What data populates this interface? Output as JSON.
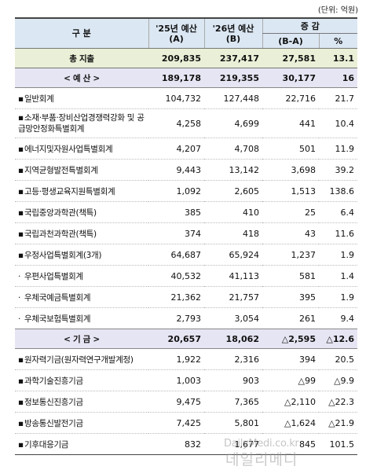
{
  "unit_note": "(단위: 억원)",
  "headers": {
    "category": "구    분",
    "col_2025": "'25년 예산",
    "col_2025_sub": "(A)",
    "col_2026": "'26년 예산",
    "col_2026_sub": "(B)",
    "change": "증 감",
    "change_abs": "(B-A)",
    "change_pct": "%"
  },
  "total": {
    "label": "총 지출",
    "a": "209,835",
    "b": "237,417",
    "diff": "27,581",
    "pct": "13.1"
  },
  "budget_section": {
    "label": "< 예 산 >",
    "a": "189,178",
    "b": "219,355",
    "diff": "30,177",
    "pct": "16"
  },
  "budget_items": [
    {
      "bullet": "▪",
      "label": "일반회계",
      "a": "104,732",
      "b": "127,448",
      "diff": "22,716",
      "pct": "21.7"
    },
    {
      "bullet": "▪",
      "label": "소재·부품·장비산업경쟁력강화 및 공급망안정화특별회계",
      "a": "4,258",
      "b": "4,699",
      "diff": "441",
      "pct": "10.4"
    },
    {
      "bullet": "▪",
      "label": "에너지및자원사업특별회계",
      "a": "4,207",
      "b": "4,708",
      "diff": "501",
      "pct": "11.9"
    },
    {
      "bullet": "▪",
      "label": "지역균형발전특별회계",
      "a": "9,443",
      "b": "13,142",
      "diff": "3,698",
      "pct": "39.2"
    },
    {
      "bullet": "▪",
      "label": "고등·평생교육지원특별회계",
      "a": "1,092",
      "b": "2,605",
      "diff": "1,513",
      "pct": "138.6"
    },
    {
      "bullet": "▪",
      "label": "국립중앙과학관(책특)",
      "a": "385",
      "b": "410",
      "diff": "25",
      "pct": "6.4"
    },
    {
      "bullet": "▪",
      "label": "국립과천과학관(책특)",
      "a": "374",
      "b": "418",
      "diff": "43",
      "pct": "11.6"
    },
    {
      "bullet": "▪",
      "label": "우정사업특별회계(3개)",
      "a": "64,687",
      "b": "65,924",
      "diff": "1,237",
      "pct": "1.9"
    },
    {
      "bullet": "·",
      "label": "우편사업특별회계",
      "a": "40,532",
      "b": "41,113",
      "diff": "581",
      "pct": "1.4"
    },
    {
      "bullet": "·",
      "label": "우체국예금특별회계",
      "a": "21,362",
      "b": "21,757",
      "diff": "395",
      "pct": "1.9"
    },
    {
      "bullet": "·",
      "label": "우체국보험특별회계",
      "a": "2,793",
      "b": "3,054",
      "diff": "261",
      "pct": "9.4"
    }
  ],
  "fund_section": {
    "label": "< 기 금 >",
    "a": "20,657",
    "b": "18,062",
    "diff": "△2,595",
    "pct": "△12.6"
  },
  "fund_items": [
    {
      "bullet": "▪",
      "label": "원자력기금(원자력연구개발계정)",
      "a": "1,922",
      "b": "2,316",
      "diff": "394",
      "pct": "20.5"
    },
    {
      "bullet": "▪",
      "label": "과학기술진흥기금",
      "a": "1,003",
      "b": "903",
      "diff": "△99",
      "pct": "△9.9"
    },
    {
      "bullet": "▪",
      "label": "정보통신진흥기금",
      "a": "9,475",
      "b": "7,365",
      "diff": "△2,110",
      "pct": "△22.3"
    },
    {
      "bullet": "▪",
      "label": "방송통신발전기금",
      "a": "7,425",
      "b": "5,801",
      "diff": "△1,624",
      "pct": "△21.9"
    },
    {
      "bullet": "▪",
      "label": "기후대응기금",
      "a": "832",
      "b": "1,677",
      "diff": "845",
      "pct": "101.5"
    }
  ],
  "watermark": {
    "line1": "DailyMedi.co.kr",
    "line2": "데일리메디"
  }
}
